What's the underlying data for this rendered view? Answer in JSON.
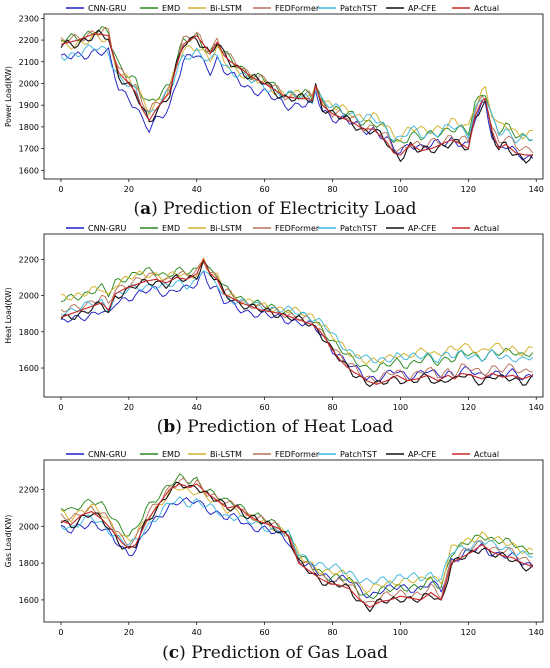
{
  "legend_entries": [
    {
      "name": "CNN-GRU",
      "color": "#1f1fc8"
    },
    {
      "name": "EMD",
      "color": "#2a8a1f"
    },
    {
      "name": "Bi-LSTM",
      "color": "#d4b12a"
    },
    {
      "name": "FEDFormer",
      "color": "#b8735a"
    },
    {
      "name": "PatchTST",
      "color": "#3fb8e0"
    },
    {
      "name": "AP-CFE",
      "color": "#111111"
    },
    {
      "name": "Actual",
      "color": "#c8282a"
    }
  ],
  "captions": [
    {
      "letter": "a",
      "text": " Prediction of Electricity Load"
    },
    {
      "letter": "b",
      "text": " Prediction of Heat Load"
    },
    {
      "letter": "c",
      "text": " Prediction of Gas Load"
    }
  ],
  "chart_data": [
    {
      "type": "line",
      "ylabel": "Power Load(KW)",
      "xlabel": "",
      "xlim": [
        -5,
        142
      ],
      "ylim": [
        1560,
        2320
      ],
      "xticks": [
        0,
        20,
        40,
        60,
        80,
        100,
        120,
        140
      ],
      "yticks": [
        1600,
        1700,
        1800,
        1900,
        2000,
        2100,
        2200,
        2300
      ],
      "grid": false,
      "legend": "top-center",
      "actual": [
        [
          0,
          2180
        ],
        [
          5,
          2200
        ],
        [
          10,
          2230
        ],
        [
          14,
          2220
        ],
        [
          15,
          2150
        ],
        [
          17,
          2050
        ],
        [
          20,
          2000
        ],
        [
          22,
          1960
        ],
        [
          24,
          1880
        ],
        [
          26,
          1830
        ],
        [
          28,
          1880
        ],
        [
          30,
          1920
        ],
        [
          32,
          1960
        ],
        [
          34,
          2080
        ],
        [
          36,
          2180
        ],
        [
          38,
          2200
        ],
        [
          40,
          2220
        ],
        [
          42,
          2180
        ],
        [
          44,
          2140
        ],
        [
          46,
          2190
        ],
        [
          48,
          2130
        ],
        [
          50,
          2100
        ],
        [
          53,
          2070
        ],
        [
          56,
          2030
        ],
        [
          60,
          2000
        ],
        [
          63,
          1970
        ],
        [
          66,
          1940
        ],
        [
          70,
          1930
        ],
        [
          73,
          1930
        ],
        [
          74,
          1920
        ],
        [
          75,
          1990
        ],
        [
          77,
          1900
        ],
        [
          80,
          1860
        ],
        [
          83,
          1840
        ],
        [
          86,
          1820
        ],
        [
          89,
          1790
        ],
        [
          92,
          1790
        ],
        [
          94,
          1760
        ],
        [
          96,
          1730
        ],
        [
          98,
          1680
        ],
        [
          100,
          1670
        ],
        [
          103,
          1720
        ],
        [
          106,
          1690
        ],
        [
          109,
          1700
        ],
        [
          112,
          1720
        ],
        [
          115,
          1740
        ],
        [
          118,
          1720
        ],
        [
          120,
          1700
        ],
        [
          122,
          1850
        ],
        [
          124,
          1920
        ],
        [
          125,
          1930
        ],
        [
          127,
          1780
        ],
        [
          129,
          1700
        ],
        [
          131,
          1720
        ],
        [
          134,
          1680
        ],
        [
          137,
          1670
        ],
        [
          139,
          1670
        ]
      ],
      "series": [
        {
          "name": "CNN-GRU",
          "offset": -60,
          "amp": 0.9,
          "phase": 0.3
        },
        {
          "name": "EMD",
          "offset": 55,
          "amp": 0.85,
          "phase": 1.1
        },
        {
          "name": "Bi-LSTM",
          "offset": 45,
          "amp": 0.8,
          "phase": 2.2
        },
        {
          "name": "FEDFormer",
          "offset": 25,
          "amp": 0.95,
          "phase": 0.7
        },
        {
          "name": "PatchTST",
          "offset": 10,
          "amp": 0.75,
          "phase": 3.1
        },
        {
          "name": "AP-CFE",
          "offset": -10,
          "amp": 1.0,
          "phase": 1.7
        },
        {
          "name": "Actual",
          "offset": 0,
          "amp": 1.0,
          "phase": 0
        }
      ]
    },
    {
      "type": "line",
      "ylabel": "Heat Load(KW)",
      "xlabel": "",
      "xlim": [
        -5,
        142
      ],
      "ylim": [
        1440,
        2340
      ],
      "xticks": [
        0,
        20,
        40,
        60,
        80,
        100,
        120,
        140
      ],
      "yticks": [
        1600,
        1800,
        2000,
        2200
      ],
      "grid": false,
      "legend": "top-center",
      "actual": [
        [
          0,
          1880
        ],
        [
          3,
          1900
        ],
        [
          6,
          1920
        ],
        [
          9,
          1940
        ],
        [
          12,
          1960
        ],
        [
          14,
          1920
        ],
        [
          16,
          2010
        ],
        [
          19,
          2040
        ],
        [
          22,
          2060
        ],
        [
          25,
          2080
        ],
        [
          28,
          2090
        ],
        [
          31,
          2070
        ],
        [
          34,
          2100
        ],
        [
          37,
          2090
        ],
        [
          40,
          2120
        ],
        [
          42,
          2200
        ],
        [
          44,
          2120
        ],
        [
          46,
          2090
        ],
        [
          48,
          2010
        ],
        [
          50,
          1990
        ],
        [
          53,
          1960
        ],
        [
          56,
          1940
        ],
        [
          59,
          1920
        ],
        [
          62,
          1910
        ],
        [
          65,
          1900
        ],
        [
          68,
          1880
        ],
        [
          71,
          1860
        ],
        [
          74,
          1840
        ],
        [
          76,
          1810
        ],
        [
          78,
          1760
        ],
        [
          80,
          1700
        ],
        [
          82,
          1650
        ],
        [
          84,
          1610
        ],
        [
          86,
          1580
        ],
        [
          88,
          1560
        ],
        [
          90,
          1530
        ],
        [
          93,
          1510
        ],
        [
          96,
          1530
        ],
        [
          99,
          1560
        ],
        [
          102,
          1530
        ],
        [
          105,
          1540
        ],
        [
          108,
          1560
        ],
        [
          111,
          1530
        ],
        [
          114,
          1560
        ],
        [
          116,
          1540
        ],
        [
          118,
          1570
        ],
        [
          121,
          1560
        ],
        [
          124,
          1540
        ],
        [
          127,
          1570
        ],
        [
          130,
          1550
        ],
        [
          133,
          1560
        ],
        [
          136,
          1540
        ],
        [
          139,
          1560
        ]
      ],
      "series": [
        {
          "name": "CNN-GRU",
          "offset": -40,
          "amp": 0.9,
          "phase": 0.5
        },
        {
          "name": "EMD",
          "offset": 90,
          "amp": 0.85,
          "phase": 1.3
        },
        {
          "name": "Bi-LSTM",
          "offset": 120,
          "amp": 0.9,
          "phase": 2.4
        },
        {
          "name": "FEDFormer",
          "offset": 30,
          "amp": 0.95,
          "phase": 0.9
        },
        {
          "name": "PatchTST",
          "offset": 50,
          "amp": 0.8,
          "phase": 3.3
        },
        {
          "name": "AP-CFE",
          "offset": -15,
          "amp": 1.0,
          "phase": 1.9
        },
        {
          "name": "Actual",
          "offset": 0,
          "amp": 1.0,
          "phase": 0
        }
      ]
    },
    {
      "type": "line",
      "ylabel": "Gas Load(KW)",
      "xlabel": "",
      "xlim": [
        -5,
        142
      ],
      "ylim": [
        1480,
        2360
      ],
      "xticks": [
        0,
        20,
        40,
        60,
        80,
        100,
        120,
        140
      ],
      "yticks": [
        1600,
        1800,
        2000,
        2200
      ],
      "grid": false,
      "legend": "top-center",
      "actual": [
        [
          0,
          2030
        ],
        [
          3,
          2010
        ],
        [
          6,
          2060
        ],
        [
          9,
          2080
        ],
        [
          12,
          2040
        ],
        [
          15,
          1980
        ],
        [
          18,
          1910
        ],
        [
          20,
          1880
        ],
        [
          22,
          1900
        ],
        [
          25,
          2020
        ],
        [
          28,
          2100
        ],
        [
          30,
          2150
        ],
        [
          32,
          2200
        ],
        [
          35,
          2230
        ],
        [
          38,
          2210
        ],
        [
          40,
          2230
        ],
        [
          43,
          2180
        ],
        [
          46,
          2140
        ],
        [
          49,
          2100
        ],
        [
          52,
          2110
        ],
        [
          55,
          2060
        ],
        [
          58,
          2030
        ],
        [
          61,
          2010
        ],
        [
          64,
          1990
        ],
        [
          67,
          1950
        ],
        [
          70,
          1800
        ],
        [
          73,
          1760
        ],
        [
          76,
          1720
        ],
        [
          79,
          1690
        ],
        [
          82,
          1680
        ],
        [
          85,
          1660
        ],
        [
          88,
          1600
        ],
        [
          91,
          1560
        ],
        [
          94,
          1590
        ],
        [
          97,
          1600
        ],
        [
          100,
          1620
        ],
        [
          103,
          1610
        ],
        [
          106,
          1600
        ],
        [
          109,
          1640
        ],
        [
          112,
          1600
        ],
        [
          115,
          1800
        ],
        [
          118,
          1830
        ],
        [
          121,
          1860
        ],
        [
          124,
          1900
        ],
        [
          127,
          1860
        ],
        [
          130,
          1840
        ],
        [
          133,
          1830
        ],
        [
          136,
          1800
        ],
        [
          139,
          1780
        ]
      ],
      "series": [
        {
          "name": "CNN-GRU",
          "offset": -30,
          "amp": 0.8,
          "phase": 0.4
        },
        {
          "name": "EMD",
          "offset": 80,
          "amp": 0.9,
          "phase": 1.2
        },
        {
          "name": "Bi-LSTM",
          "offset": 60,
          "amp": 0.85,
          "phase": 2.3
        },
        {
          "name": "FEDFormer",
          "offset": 30,
          "amp": 0.95,
          "phase": 0.8
        },
        {
          "name": "PatchTST",
          "offset": 20,
          "amp": 0.7,
          "phase": 3.2
        },
        {
          "name": "AP-CFE",
          "offset": -10,
          "amp": 1.0,
          "phase": 1.8
        },
        {
          "name": "Actual",
          "offset": 0,
          "amp": 1.0,
          "phase": 0
        }
      ]
    }
  ]
}
